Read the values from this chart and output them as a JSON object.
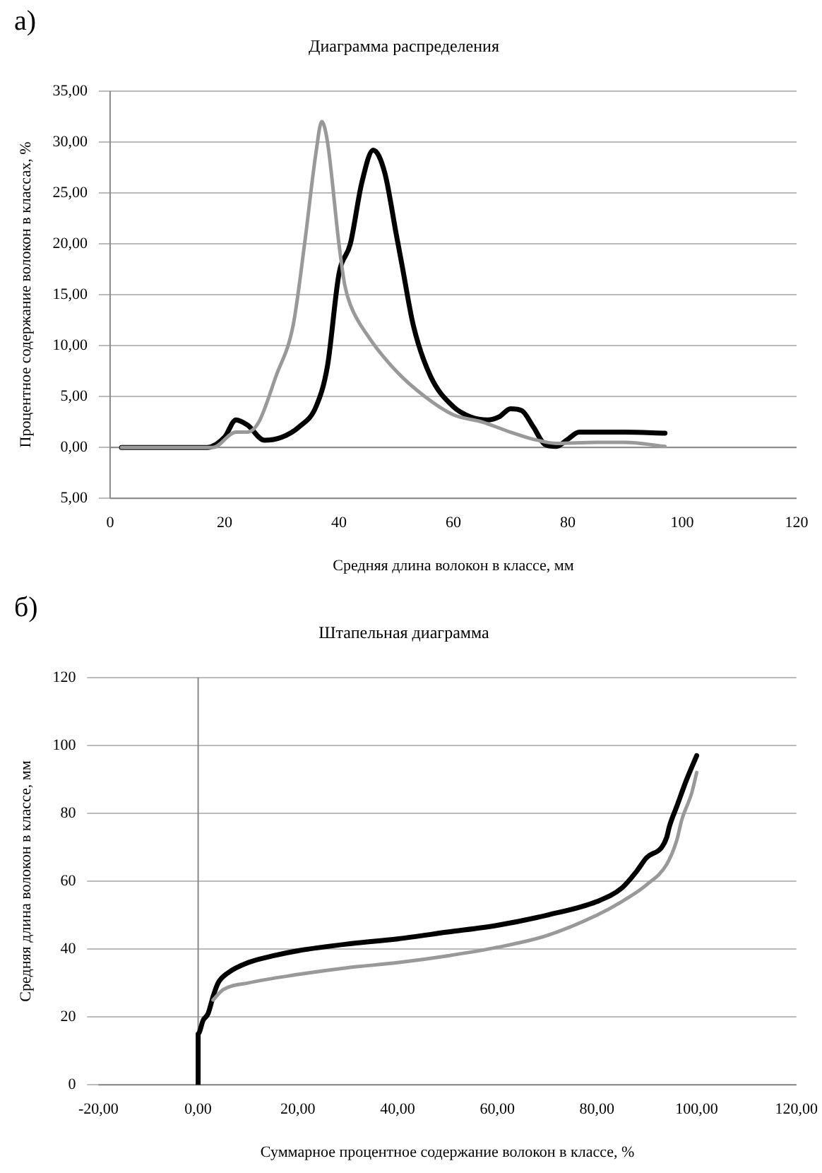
{
  "chart_data": [
    {
      "type": "line",
      "title": "Диаграмма распределения",
      "xlabel": "Средняя длина волокон в классе, мм",
      "ylabel": "Процентное содержание волокон в классах, %",
      "annotations": [
        "а)"
      ],
      "xlim": [
        0,
        120
      ],
      "xticks": [
        0,
        20,
        40,
        60,
        80,
        100,
        120
      ],
      "ylim": [
        -5,
        35
      ],
      "yticks": [
        {
          "value": -5,
          "label": "5,00"
        },
        {
          "value": 0,
          "label": "0,00"
        },
        {
          "value": 5,
          "label": "5,00"
        },
        {
          "value": 10,
          "label": "10,00"
        },
        {
          "value": 15,
          "label": "15,00"
        },
        {
          "value": 20,
          "label": "20,00"
        },
        {
          "value": 25,
          "label": "25,00"
        },
        {
          "value": 30,
          "label": "30,00"
        },
        {
          "value": 35,
          "label": "35,00"
        }
      ],
      "grid": "y",
      "legend": false,
      "marker": "none",
      "line_style": "solid",
      "series": [
        {
          "color": "#999999",
          "x": [
            2,
            18,
            22,
            24,
            26,
            29,
            32,
            34,
            36,
            37,
            38,
            40,
            41,
            42,
            45,
            50,
            55,
            60,
            65,
            70,
            74,
            78,
            85,
            90,
            97
          ],
          "values": [
            0,
            0,
            1.5,
            1.5,
            2.5,
            7,
            12,
            20,
            29,
            32,
            30,
            20,
            16,
            14,
            11,
            7.5,
            5,
            3.2,
            2.5,
            1.5,
            0.8,
            0.4,
            0.5,
            0.5,
            0.1
          ]
        },
        {
          "color": "#000000",
          "x": [
            2,
            10,
            17,
            20,
            22,
            24,
            27,
            30,
            33,
            36,
            38,
            40,
            42,
            44,
            46,
            48,
            50,
            51,
            53,
            56,
            60,
            63,
            66,
            68,
            70,
            72,
            74,
            76,
            78,
            80,
            82,
            85,
            90,
            97
          ],
          "values": [
            0,
            0,
            0,
            1,
            2.7,
            2.2,
            0.7,
            1,
            2,
            4,
            8,
            17,
            20,
            26,
            29.2,
            27,
            21,
            18,
            12,
            7,
            4,
            3,
            2.7,
            3,
            3.8,
            3.6,
            2,
            0.3,
            0.1,
            0.8,
            1.5,
            1.5,
            1.5,
            1.4
          ]
        }
      ]
    },
    {
      "type": "line",
      "title": "Штапельная диаграмма",
      "xlabel": "Суммарное процентное содержание волокон в классе, %",
      "ylabel": "Средняя длина волокон в классе, мм",
      "annotations": [
        "б)"
      ],
      "xlim": [
        -20,
        120
      ],
      "xticks": [
        {
          "value": -20,
          "label": "-20,00"
        },
        {
          "value": 0,
          "label": "0,00"
        },
        {
          "value": 20,
          "label": "20,00"
        },
        {
          "value": 40,
          "label": "40,00"
        },
        {
          "value": 60,
          "label": "60,00"
        },
        {
          "value": 80,
          "label": "80,00"
        },
        {
          "value": 100,
          "label": "100,00"
        },
        {
          "value": 120,
          "label": "120,00"
        }
      ],
      "ylim": [
        0,
        120
      ],
      "yticks": [
        0,
        20,
        40,
        60,
        80,
        100,
        120
      ],
      "grid": "y",
      "legend": false,
      "marker": "none",
      "line_style": "solid",
      "series": [
        {
          "color": "#999999",
          "x": [
            3,
            5,
            10,
            20,
            30,
            40,
            50,
            60,
            70,
            80,
            85,
            90,
            94,
            96,
            97,
            99,
            100
          ],
          "values": [
            25,
            28,
            30,
            32.5,
            34.5,
            36,
            38,
            40.5,
            44,
            50,
            54,
            59,
            65,
            72,
            78,
            86,
            92
          ]
        },
        {
          "color": "#000000",
          "x": [
            0,
            0,
            1,
            2,
            3,
            4,
            6,
            10,
            15,
            20,
            30,
            40,
            50,
            60,
            70,
            80,
            85,
            88,
            90,
            93,
            94,
            94.5,
            96,
            98,
            100
          ],
          "values": [
            0,
            15,
            19,
            21,
            26,
            30,
            33,
            36,
            38,
            39.5,
            41.5,
            43,
            45,
            47,
            50,
            54,
            58,
            63,
            67,
            70,
            73,
            76,
            82,
            90,
            97
          ]
        }
      ]
    }
  ]
}
